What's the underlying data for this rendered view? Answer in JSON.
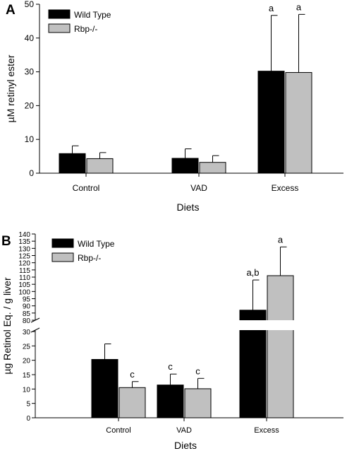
{
  "chart_data": [
    {
      "panel_label": "A",
      "type": "bar",
      "categories": [
        "Control",
        "VAD",
        "Excess"
      ],
      "xlabel": "Diets",
      "ylabel": "µM retinyl ester",
      "ylim": [
        0,
        50
      ],
      "yticks": [
        0,
        10,
        20,
        30,
        40,
        50
      ],
      "legend": "top-left",
      "series": [
        {
          "name": "Wild Type",
          "color": "#000000",
          "values": [
            5.8,
            4.4,
            30.2
          ],
          "errors": [
            2.3,
            2.8,
            16.5
          ],
          "labels": [
            "",
            "",
            "a"
          ]
        },
        {
          "name": "Rbp-/-",
          "color": "#c0c0c0",
          "values": [
            4.3,
            3.2,
            29.8
          ],
          "errors": [
            1.8,
            2.0,
            17.2
          ],
          "labels": [
            "",
            "",
            "a"
          ]
        }
      ]
    },
    {
      "panel_label": "B",
      "type": "bar",
      "categories": [
        "Control",
        "VAD",
        "Excess"
      ],
      "xlabel": "Diets",
      "ylabel": "µg Retinol Eq. / g liver",
      "broken_axis": true,
      "ylim_lower": [
        0,
        30
      ],
      "ylim_upper": [
        80,
        140
      ],
      "yticks_lower": [
        0,
        5,
        10,
        15,
        20,
        25,
        30
      ],
      "yticks_upper": [
        80,
        85,
        90,
        95,
        100,
        105,
        110,
        115,
        120,
        125,
        130,
        135,
        140
      ],
      "legend": "top-left",
      "series": [
        {
          "name": "Wild Type",
          "color": "#000000",
          "values": [
            20.3,
            11.4,
            87
          ],
          "errors": [
            5.4,
            3.8,
            21
          ],
          "labels": [
            "",
            "c",
            "a,b"
          ]
        },
        {
          "name": "Rbp-/-",
          "color": "#c0c0c0",
          "values": [
            10.5,
            10.1,
            111
          ],
          "errors": [
            2.1,
            3.6,
            20
          ],
          "labels": [
            "c",
            "c",
            "a"
          ]
        }
      ]
    }
  ]
}
